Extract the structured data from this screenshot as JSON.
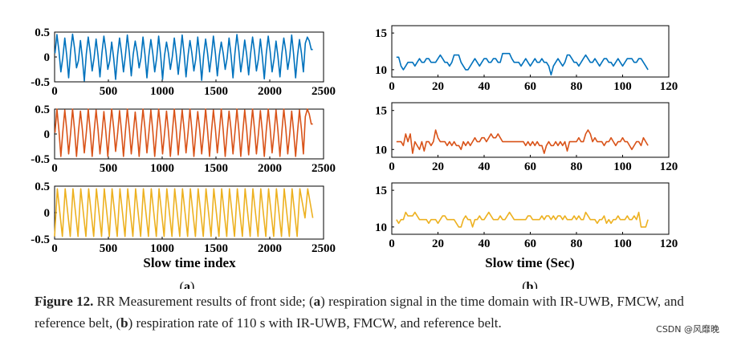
{
  "panels": {
    "a": {
      "label_open": "(",
      "label_letter": "a",
      "label_close": ")",
      "xlabel": "Slow time index"
    },
    "b": {
      "label_open": "(",
      "label_letter": "b",
      "label_close": ")",
      "xlabel": "Slow time (Sec)"
    }
  },
  "caption": {
    "figure_label": "Figure 12.",
    "text_parts": [
      " RR Measurement results of front side; (",
      "a",
      ") respiration signal in the time domain with IR-UWB, FMCW, and reference belt, (",
      "b",
      ") respiration rate of 110 s with IR-UWB, FMCW, and reference belt."
    ]
  },
  "watermark": "CSDN @风靡晚",
  "colors": {
    "uwb": "#0072BD",
    "fmcw": "#D95319",
    "belt": "#EDB120"
  },
  "chart_data": [
    {
      "type": "line",
      "panel": "a",
      "series_name": "IR-UWB respiration signal",
      "color": "#0072BD",
      "x_range": [
        0,
        2400
      ],
      "xlim": [
        0,
        2500
      ],
      "ylim": [
        -0.5,
        0.5
      ],
      "xticks": [
        "0",
        "500",
        "1000",
        "1500",
        "2000",
        "2500"
      ],
      "yticks": [
        "0.5",
        "0",
        "-0.5"
      ],
      "cycles": [
        [
          0.45,
          -0.3
        ],
        [
          0.38,
          -0.42
        ],
        [
          0.46,
          -0.22
        ],
        [
          0.33,
          -0.48
        ],
        [
          0.4,
          -0.28
        ],
        [
          0.36,
          -0.4
        ],
        [
          0.42,
          -0.25
        ],
        [
          0.3,
          -0.45
        ],
        [
          0.38,
          -0.3
        ],
        [
          0.44,
          -0.38
        ],
        [
          0.32,
          -0.22
        ],
        [
          0.4,
          -0.42
        ],
        [
          0.35,
          -0.3
        ],
        [
          0.42,
          -0.45
        ],
        [
          0.3,
          -0.25
        ],
        [
          0.38,
          -0.35
        ],
        [
          0.44,
          -0.4
        ],
        [
          0.33,
          -0.28
        ],
        [
          0.4,
          -0.47
        ],
        [
          0.36,
          -0.3
        ],
        [
          0.42,
          -0.38
        ],
        [
          0.3,
          -0.25
        ],
        [
          0.38,
          -0.42
        ],
        [
          0.45,
          -0.3
        ],
        [
          0.34,
          -0.36
        ],
        [
          0.4,
          -0.28
        ],
        [
          0.36,
          -0.44
        ],
        [
          0.42,
          -0.3
        ],
        [
          0.32,
          -0.4
        ],
        [
          0.38,
          -0.25
        ],
        [
          0.44,
          -0.42
        ],
        [
          0.35,
          -0.3
        ],
        [
          0.4,
          0.15
        ]
      ]
    },
    {
      "type": "line",
      "panel": "a",
      "series_name": "FMCW respiration signal",
      "color": "#D95319",
      "x_range": [
        0,
        2400
      ],
      "xlim": [
        0,
        2500
      ],
      "ylim": [
        -0.5,
        0.5
      ],
      "xticks": [
        "0",
        "500",
        "1000",
        "1500",
        "2000",
        "2500"
      ],
      "yticks": [
        "0.5",
        "0",
        "-0.5"
      ],
      "cycles": [
        [
          0.5,
          -0.45
        ],
        [
          0.48,
          -0.4
        ],
        [
          0.5,
          -0.45
        ],
        [
          0.46,
          -0.38
        ],
        [
          0.5,
          -0.45
        ],
        [
          0.48,
          -0.4
        ],
        [
          0.45,
          -0.45
        ],
        [
          0.5,
          -0.35
        ],
        [
          0.47,
          -0.45
        ],
        [
          0.5,
          -0.4
        ],
        [
          0.44,
          -0.45
        ],
        [
          0.5,
          -0.38
        ],
        [
          0.48,
          -0.45
        ],
        [
          0.5,
          -0.4
        ],
        [
          0.46,
          -0.45
        ],
        [
          0.5,
          -0.42
        ],
        [
          0.48,
          -0.38
        ],
        [
          0.5,
          -0.45
        ],
        [
          0.45,
          -0.4
        ],
        [
          0.5,
          -0.45
        ],
        [
          0.48,
          -0.38
        ],
        [
          0.5,
          -0.45
        ],
        [
          0.46,
          -0.4
        ],
        [
          0.5,
          -0.45
        ],
        [
          0.48,
          -0.42
        ],
        [
          0.5,
          -0.4
        ],
        [
          0.47,
          -0.45
        ],
        [
          0.5,
          -0.38
        ],
        [
          0.48,
          -0.45
        ],
        [
          0.5,
          -0.4
        ],
        [
          0.46,
          -0.45
        ],
        [
          0.48,
          -0.4
        ],
        [
          0.5,
          0.2
        ]
      ]
    },
    {
      "type": "line",
      "panel": "a",
      "series_name": "Reference belt respiration signal",
      "color": "#EDB120",
      "x_range": [
        0,
        2400
      ],
      "xlim": [
        0,
        2500
      ],
      "ylim": [
        -0.5,
        0.5
      ],
      "xticks": [
        "0",
        "500",
        "1000",
        "1500",
        "2000",
        "2500"
      ],
      "yticks": [
        "0.5",
        "0",
        "-0.5"
      ],
      "cycles": [
        [
          0.45,
          -0.45
        ],
        [
          0.45,
          -0.45
        ],
        [
          0.45,
          -0.45
        ],
        [
          0.45,
          -0.45
        ],
        [
          0.45,
          -0.45
        ],
        [
          0.45,
          -0.45
        ],
        [
          0.45,
          -0.45
        ],
        [
          0.45,
          -0.45
        ],
        [
          0.45,
          -0.45
        ],
        [
          0.45,
          -0.45
        ],
        [
          0.45,
          -0.45
        ],
        [
          0.45,
          -0.45
        ],
        [
          0.45,
          -0.45
        ],
        [
          0.45,
          -0.45
        ],
        [
          0.45,
          -0.45
        ],
        [
          0.45,
          -0.45
        ],
        [
          0.45,
          -0.45
        ],
        [
          0.45,
          -0.45
        ],
        [
          0.45,
          -0.45
        ],
        [
          0.45,
          -0.45
        ],
        [
          0.45,
          -0.45
        ],
        [
          0.45,
          -0.45
        ],
        [
          0.45,
          -0.45
        ],
        [
          0.45,
          -0.45
        ],
        [
          0.45,
          -0.45
        ],
        [
          0.45,
          -0.45
        ],
        [
          0.45,
          -0.45
        ],
        [
          0.45,
          -0.45
        ],
        [
          0.45,
          -0.45
        ],
        [
          0.45,
          -0.45
        ],
        [
          0.45,
          -0.45
        ],
        [
          0.45,
          -0.45
        ],
        [
          0.45,
          -0.1
        ]
      ]
    },
    {
      "type": "line",
      "panel": "b",
      "series_name": "IR-UWB respiration rate",
      "color": "#0072BD",
      "xlim": [
        0,
        120
      ],
      "ylim": [
        9,
        16
      ],
      "xticks": [
        "0",
        "20",
        "40",
        "60",
        "80",
        "100",
        "120"
      ],
      "yticks": [
        "15",
        "10"
      ],
      "x": [
        2,
        3,
        4,
        5,
        6,
        7,
        8,
        9,
        10,
        11,
        12,
        13,
        14,
        15,
        16,
        17,
        18,
        19,
        20,
        21,
        22,
        23,
        24,
        25,
        26,
        27,
        28,
        29,
        30,
        31,
        32,
        33,
        34,
        35,
        36,
        37,
        38,
        39,
        40,
        41,
        42,
        43,
        44,
        45,
        46,
        47,
        48,
        49,
        50,
        51,
        52,
        53,
        54,
        55,
        56,
        57,
        58,
        59,
        60,
        61,
        62,
        63,
        64,
        65,
        66,
        67,
        68,
        69,
        70,
        71,
        72,
        73,
        74,
        75,
        76,
        77,
        78,
        79,
        80,
        81,
        82,
        83,
        84,
        85,
        86,
        87,
        88,
        89,
        90,
        91,
        92,
        93,
        94,
        95,
        96,
        97,
        98,
        99,
        100,
        101,
        102,
        103,
        104,
        105,
        106,
        107,
        108,
        109,
        110,
        111
      ],
      "y": [
        11.7,
        11.7,
        10.5,
        10,
        10.5,
        11,
        11,
        11,
        10.5,
        11,
        11.5,
        11,
        11,
        11.5,
        11.5,
        11,
        11,
        11,
        11.5,
        12,
        11.5,
        11,
        11,
        10.5,
        11,
        12,
        12,
        12,
        11,
        10.5,
        10,
        10,
        10.5,
        11,
        11.5,
        11,
        10.5,
        11,
        11.5,
        11.5,
        11,
        11,
        11.5,
        11.5,
        11,
        11,
        12.2,
        12.2,
        12.2,
        12.2,
        11.5,
        11,
        11,
        11,
        10.5,
        11,
        11.5,
        11,
        10.5,
        11,
        11.5,
        11,
        11,
        11.5,
        11,
        11,
        10.5,
        9.3,
        10.5,
        11,
        11.5,
        11,
        10.5,
        11,
        12,
        12,
        11.5,
        11,
        11,
        10.5,
        11,
        11.5,
        12,
        11.5,
        11,
        11,
        11.5,
        11,
        10.5,
        11,
        11.5,
        11.5,
        11,
        11,
        10.5,
        11,
        11.5,
        11,
        10.5,
        11,
        11.5,
        11.5,
        11.5,
        11,
        11,
        11.5,
        11.5,
        11,
        10.5,
        10
      ]
    },
    {
      "type": "line",
      "panel": "b",
      "series_name": "FMCW respiration rate",
      "color": "#D95319",
      "xlim": [
        0,
        120
      ],
      "ylim": [
        9,
        16
      ],
      "xticks": [
        "0",
        "20",
        "40",
        "60",
        "80",
        "100",
        "120"
      ],
      "yticks": [
        "15",
        "10"
      ],
      "x": [
        2,
        3,
        4,
        5,
        6,
        7,
        8,
        9,
        10,
        11,
        12,
        13,
        14,
        15,
        16,
        17,
        18,
        19,
        20,
        21,
        22,
        23,
        24,
        25,
        26,
        27,
        28,
        29,
        30,
        31,
        32,
        33,
        34,
        35,
        36,
        37,
        38,
        39,
        40,
        41,
        42,
        43,
        44,
        45,
        46,
        47,
        48,
        49,
        50,
        51,
        52,
        53,
        54,
        55,
        56,
        57,
        58,
        59,
        60,
        61,
        62,
        63,
        64,
        65,
        66,
        67,
        68,
        69,
        70,
        71,
        72,
        73,
        74,
        75,
        76,
        77,
        78,
        79,
        80,
        81,
        82,
        83,
        84,
        85,
        86,
        87,
        88,
        89,
        90,
        91,
        92,
        93,
        94,
        95,
        96,
        97,
        98,
        99,
        100,
        101,
        102,
        103,
        104,
        105,
        106,
        107,
        108,
        109,
        110,
        111
      ],
      "y": [
        11,
        11,
        11,
        10.5,
        12,
        11,
        12,
        9.5,
        11,
        10.5,
        10,
        11,
        9.8,
        11,
        11,
        10.5,
        11,
        12.5,
        11.5,
        11,
        11,
        11,
        10.5,
        11,
        10.5,
        11,
        10.5,
        10.5,
        10,
        11,
        10.5,
        11,
        10.5,
        11,
        11.5,
        11,
        11,
        11.5,
        11.5,
        11,
        11.5,
        12,
        11.5,
        11.5,
        12,
        11.5,
        11,
        11,
        11,
        11,
        11,
        11,
        11,
        11,
        11,
        11,
        10.5,
        11,
        10.5,
        11,
        10.5,
        11,
        10.5,
        10.5,
        9.5,
        10.5,
        11,
        10.5,
        10.5,
        11,
        10.5,
        11,
        10.5,
        11,
        9.8,
        11,
        11,
        11,
        11,
        11.5,
        11,
        11,
        12,
        12.5,
        12,
        11,
        11.5,
        11,
        11,
        11,
        10.5,
        11,
        11,
        11.5,
        11,
        10.5,
        11,
        11,
        11.5,
        11,
        11,
        10.5,
        10,
        10.5,
        11,
        11,
        10.5,
        11.5,
        11,
        10.5
      ]
    },
    {
      "type": "line",
      "panel": "b",
      "series_name": "Reference belt respiration rate",
      "color": "#EDB120",
      "xlim": [
        0,
        120
      ],
      "ylim": [
        9,
        16
      ],
      "xticks": [
        "0",
        "20",
        "40",
        "60",
        "80",
        "100",
        "120"
      ],
      "yticks": [
        "15",
        "10"
      ],
      "x": [
        2,
        3,
        4,
        5,
        6,
        7,
        8,
        9,
        10,
        11,
        12,
        13,
        14,
        15,
        16,
        17,
        18,
        19,
        20,
        21,
        22,
        23,
        24,
        25,
        26,
        27,
        28,
        29,
        30,
        31,
        32,
        33,
        34,
        35,
        36,
        37,
        38,
        39,
        40,
        41,
        42,
        43,
        44,
        45,
        46,
        47,
        48,
        49,
        50,
        51,
        52,
        53,
        54,
        55,
        56,
        57,
        58,
        59,
        60,
        61,
        62,
        63,
        64,
        65,
        66,
        67,
        68,
        69,
        70,
        71,
        72,
        73,
        74,
        75,
        76,
        77,
        78,
        79,
        80,
        81,
        82,
        83,
        84,
        85,
        86,
        87,
        88,
        89,
        90,
        91,
        92,
        93,
        94,
        95,
        96,
        97,
        98,
        99,
        100,
        101,
        102,
        103,
        104,
        105,
        106,
        107,
        108,
        109,
        110,
        111
      ],
      "y": [
        11,
        10.5,
        11,
        11,
        12,
        11.5,
        11.5,
        11.5,
        12,
        11.5,
        11,
        11,
        11,
        11,
        10.5,
        11,
        11,
        11,
        10.5,
        11,
        11.5,
        11.5,
        11,
        11,
        11,
        11,
        10.5,
        10,
        10,
        11,
        11.5,
        11,
        11,
        10,
        11,
        11,
        11.5,
        11,
        11,
        11.5,
        12,
        11.5,
        11,
        11,
        11,
        11.5,
        11,
        11,
        11.5,
        12,
        11.5,
        11,
        11,
        11,
        11,
        11,
        11,
        11.5,
        11.5,
        11,
        11,
        11,
        11,
        11.5,
        11,
        11.5,
        11.5,
        11,
        11.5,
        11,
        11.5,
        11.5,
        11,
        11.5,
        11,
        11,
        11,
        11.5,
        11,
        11.5,
        11,
        11,
        12,
        11.5,
        11,
        11,
        11,
        10.5,
        11,
        11,
        11.5,
        10.5,
        11,
        10.5,
        11,
        11,
        11.5,
        11,
        11,
        11,
        11.5,
        11,
        11,
        11.5,
        11,
        12,
        10,
        10,
        10,
        11
      ]
    }
  ]
}
